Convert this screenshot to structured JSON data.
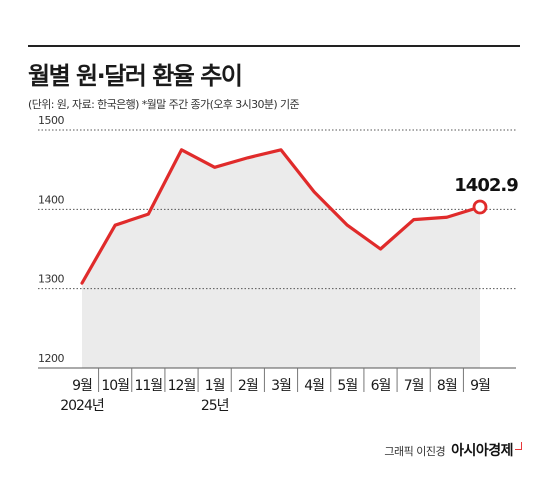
{
  "header": {
    "title": "월별 원·달러 환율 추이",
    "subtitle": "(단위: 원, 자료: 한국은행)  *월말 주간 종가(오후 3시30분) 기준"
  },
  "footer": {
    "credit": "그래픽 이진경",
    "brand": "아시아경제"
  },
  "colors": {
    "line": "#e02b2b",
    "area": "#ebebeb",
    "grid": "#555555",
    "text": "#1a1a1a"
  },
  "chart_data": {
    "type": "line",
    "x": [
      "9월",
      "10월",
      "11월",
      "12월",
      "1월",
      "2월",
      "3월",
      "4월",
      "5월",
      "6월",
      "7월",
      "8월",
      "9월"
    ],
    "year_labels": [
      "2024년",
      "",
      "",
      "",
      "25년",
      "",
      "",
      "",
      "",
      "",
      "",
      "",
      ""
    ],
    "series": [
      {
        "values": [
          1307,
          1380,
          1394,
          1475,
          1453,
          1465,
          1475,
          1422,
          1380,
          1350,
          1387,
          1390,
          1402.9
        ]
      }
    ],
    "yticks": [
      1200,
      1300,
      1400,
      1500
    ],
    "ylim": [
      1200,
      1500
    ],
    "annotation": {
      "index": 12,
      "text": "1402.9"
    },
    "area_fill": true,
    "grid": "horizontal-dotted"
  }
}
